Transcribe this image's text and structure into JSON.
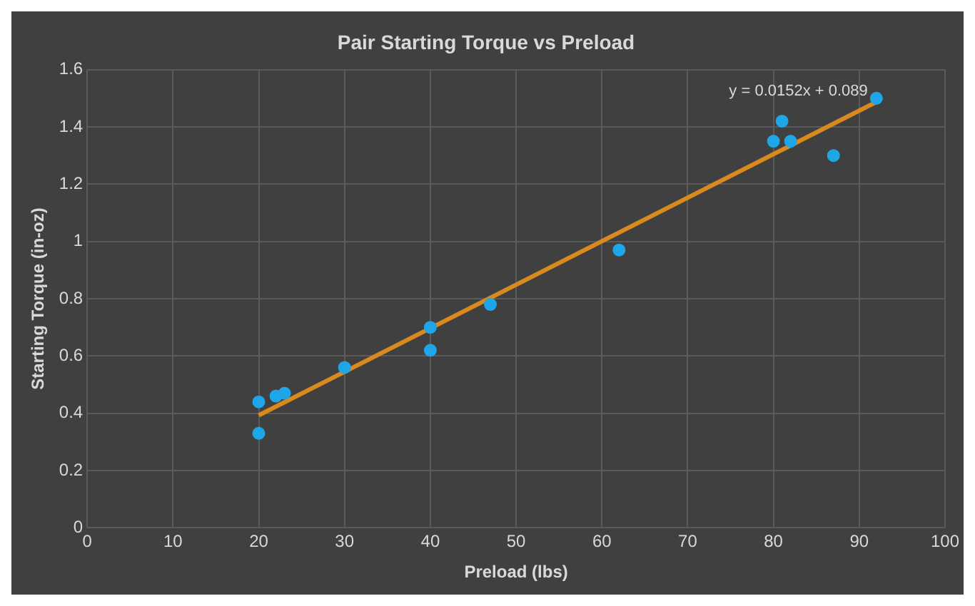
{
  "chart_data": {
    "type": "scatter",
    "title": "Pair Starting Torque vs Preload",
    "xlabel": "Preload (lbs)",
    "ylabel": "Starting Torque (in-oz)",
    "xlim": [
      0,
      100
    ],
    "xticks": [
      0,
      10,
      20,
      30,
      40,
      50,
      60,
      70,
      80,
      90,
      100
    ],
    "ylim": [
      0,
      1.6
    ],
    "yticks": [
      0,
      0.2,
      0.4,
      0.6,
      0.8,
      1,
      1.2,
      1.4,
      1.6
    ],
    "grid": true,
    "legend": false,
    "series": [
      {
        "type": "scatter",
        "marker": "circle",
        "color": "#1ea7e8",
        "x": [
          20,
          20,
          22,
          23,
          30,
          40,
          40,
          47,
          62,
          80,
          81,
          82,
          87,
          92
        ],
        "values": [
          0.44,
          0.33,
          0.46,
          0.47,
          0.56,
          0.7,
          0.62,
          0.78,
          0.97,
          1.35,
          1.42,
          1.35,
          1.3,
          1.5
        ]
      },
      {
        "type": "line",
        "color": "#d98a1e",
        "x": [
          20,
          92
        ],
        "values": [
          0.393,
          1.487
        ]
      }
    ],
    "annotations": [
      "y = 0.0152x + 0.089"
    ]
  }
}
